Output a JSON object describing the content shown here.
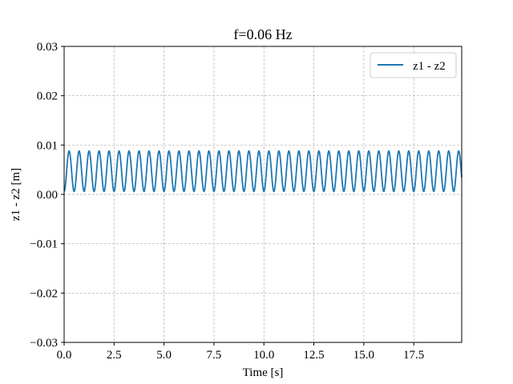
{
  "chart_data": {
    "type": "line",
    "title": "f=0.06 Hz",
    "xlabel": "Time [s]",
    "ylabel": "z1 - z2 [m]",
    "xlim": [
      0,
      19.9
    ],
    "ylim": [
      -0.03,
      0.03
    ],
    "grid": true,
    "legend_position": "top-right",
    "x_ticks": [
      0.0,
      2.5,
      5.0,
      7.5,
      10.0,
      12.5,
      15.0,
      17.5
    ],
    "x_tick_labels": [
      "0.0",
      "2.5",
      "5.0",
      "7.5",
      "10.0",
      "12.5",
      "15.0",
      "17.5"
    ],
    "y_ticks": [
      -0.03,
      -0.02,
      -0.01,
      0.0,
      0.01,
      0.02,
      0.03
    ],
    "y_tick_labels": [
      "−0.03",
      "−0.02",
      "−0.01",
      "0.00",
      "0.01",
      "0.02",
      "0.03"
    ],
    "series": [
      {
        "name": "z1 - z2",
        "color": "#1f77b4",
        "form": "sinusoid",
        "min": 0.0006,
        "max": 0.0088,
        "period": 0.5,
        "x_start": 0,
        "x_end": 19.9,
        "initial_value": 0.0006
      }
    ]
  }
}
